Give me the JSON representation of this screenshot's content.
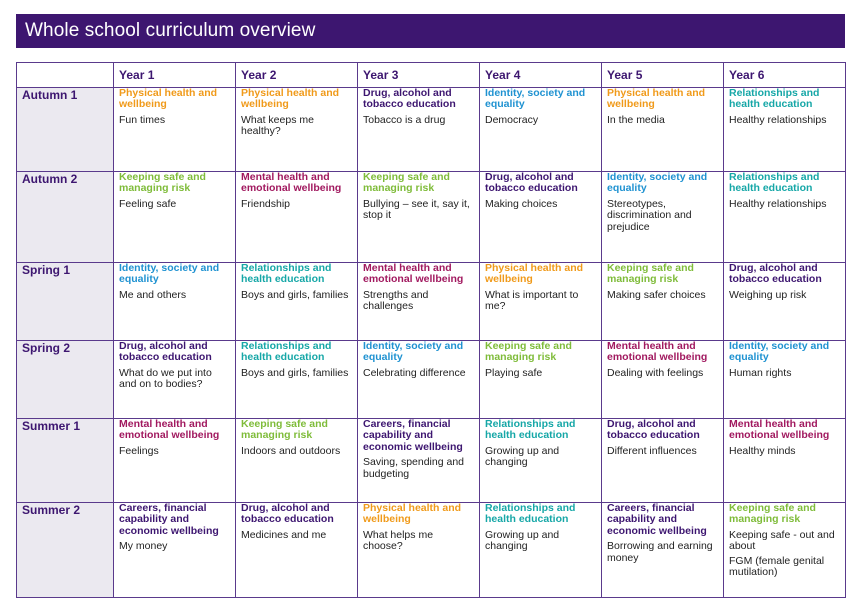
{
  "title": "Whole school curriculum overview",
  "colors": {
    "title_bar": "#3d1670",
    "physical_health": "#f09a1a",
    "drug_alcohol": "#3d1670",
    "identity": "#1f92d1",
    "relationships": "#16a7a7",
    "keeping_safe": "#7fbc3a",
    "mental_health": "#a1195f",
    "careers": "#3d1670"
  },
  "years": [
    "Year 1",
    "Year 2",
    "Year 3",
    "Year 4",
    "Year 5",
    "Year 6"
  ],
  "terms": [
    {
      "name": "Autumn 1",
      "cells": [
        {
          "topic": "Physical health and wellbeing",
          "color": "orange",
          "lines": [
            "Fun times"
          ]
        },
        {
          "topic": "Physical health and wellbeing",
          "color": "orange",
          "lines": [
            "What keeps me healthy?"
          ]
        },
        {
          "topic": "Drug, alcohol and tobacco education",
          "color": "purple",
          "lines": [
            "Tobacco is a drug"
          ]
        },
        {
          "topic": "Identity, society and equality",
          "color": "blue",
          "lines": [
            "Democracy"
          ]
        },
        {
          "topic": "Physical health and wellbeing",
          "color": "orange",
          "lines": [
            "In the media"
          ]
        },
        {
          "topic": "Relationships and health education",
          "color": "teal",
          "lines": [
            "Healthy relationships"
          ]
        }
      ]
    },
    {
      "name": "Autumn 2",
      "cells": [
        {
          "topic": "Keeping safe and managing risk",
          "color": "green",
          "lines": [
            "Feeling safe"
          ]
        },
        {
          "topic": "Mental health and emotional wellbeing",
          "color": "magenta",
          "lines": [
            "Friendship"
          ]
        },
        {
          "topic": "Keeping safe and managing risk",
          "color": "green",
          "lines": [
            "Bullying – see it, say it, stop it"
          ]
        },
        {
          "topic": "Drug, alcohol and tobacco education",
          "color": "purple",
          "lines": [
            "Making choices"
          ]
        },
        {
          "topic": "Identity, society and equality",
          "color": "blue",
          "lines": [
            "Stereotypes, discrimination and prejudice"
          ]
        },
        {
          "topic": "Relationships and health education",
          "color": "teal",
          "lines": [
            "Healthy relationships"
          ]
        }
      ]
    },
    {
      "name": "Spring 1",
      "cells": [
        {
          "topic": "Identity, society and equality",
          "color": "blue",
          "lines": [
            "Me and others"
          ]
        },
        {
          "topic": "Relationships and health education",
          "color": "teal",
          "lines": [
            "Boys and girls, families"
          ]
        },
        {
          "topic": "Mental health and emotional wellbeing",
          "color": "magenta",
          "lines": [
            "Strengths and challenges"
          ]
        },
        {
          "topic": "Physical health and wellbeing",
          "color": "orange",
          "lines": [
            "What is important to me?"
          ]
        },
        {
          "topic": "Keeping safe and managing risk",
          "color": "green",
          "lines": [
            "Making safer choices"
          ]
        },
        {
          "topic": "Drug, alcohol and tobacco education",
          "color": "purple",
          "lines": [
            "Weighing up risk"
          ]
        }
      ]
    },
    {
      "name": "Spring 2",
      "cells": [
        {
          "topic": "Drug, alcohol and tobacco education",
          "color": "purple",
          "lines": [
            "What do we put into and on to bodies?"
          ]
        },
        {
          "topic": "Relationships and health education",
          "color": "teal",
          "lines": [
            "Boys and girls, families"
          ]
        },
        {
          "topic": "Identity, society and equality",
          "color": "blue",
          "lines": [
            "Celebrating difference"
          ]
        },
        {
          "topic": "Keeping safe and managing risk",
          "color": "green",
          "lines": [
            "Playing safe"
          ]
        },
        {
          "topic": "Mental health and emotional wellbeing",
          "color": "magenta",
          "lines": [
            "Dealing with feelings"
          ]
        },
        {
          "topic": "Identity, society and equality",
          "color": "blue",
          "lines": [
            "Human rights"
          ]
        }
      ]
    },
    {
      "name": "Summer 1",
      "cells": [
        {
          "topic": "Mental health and emotional wellbeing",
          "color": "magenta",
          "lines": [
            "Feelings"
          ]
        },
        {
          "topic": "Keeping safe and managing risk",
          "color": "green",
          "lines": [
            "Indoors and outdoors"
          ]
        },
        {
          "topic": "Careers, financial capability and economic wellbeing",
          "color": "navy",
          "lines": [
            "Saving, spending and budgeting"
          ]
        },
        {
          "topic": "Relationships and health education",
          "color": "teal",
          "lines": [
            "Growing up and changing"
          ]
        },
        {
          "topic": "Drug, alcohol and tobacco education",
          "color": "purple",
          "lines": [
            "Different influences"
          ]
        },
        {
          "topic": "Mental health and emotional wellbeing",
          "color": "magenta",
          "lines": [
            "Healthy minds"
          ]
        }
      ]
    },
    {
      "name": "Summer 2",
      "cells": [
        {
          "topic": "Careers, financial capability and economic wellbeing",
          "color": "navy",
          "lines": [
            "My money"
          ]
        },
        {
          "topic": "Drug, alcohol and tobacco education",
          "color": "purple",
          "lines": [
            "Medicines and me"
          ]
        },
        {
          "topic": "Physical health and wellbeing",
          "color": "orange",
          "lines": [
            "What helps me choose?"
          ]
        },
        {
          "topic": "Relationships and health education",
          "color": "teal",
          "lines": [
            "Growing up and changing"
          ]
        },
        {
          "topic": "Careers, financial capability and economic wellbeing",
          "color": "navy",
          "lines": [
            "Borrowing and earning money"
          ]
        },
        {
          "topic": "Keeping safe and managing risk",
          "color": "green",
          "lines": [
            "Keeping safe - out and about",
            "FGM (female genital mutilation)"
          ]
        }
      ]
    }
  ]
}
